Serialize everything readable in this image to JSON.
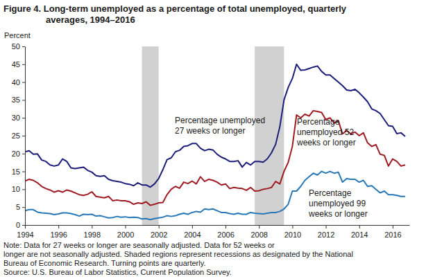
{
  "chart_data": {
    "type": "line",
    "title": [
      "Figure 4. Long-term unemployed as a percentage of total unemployed, quarterly",
      "averages, 1994–2016"
    ],
    "y_label": "Percent",
    "x": [
      1994,
      1994.25,
      1994.5,
      1994.75,
      1995,
      1995.25,
      1995.5,
      1995.75,
      1996,
      1996.25,
      1996.5,
      1996.75,
      1997,
      1997.25,
      1997.5,
      1997.75,
      1998,
      1998.25,
      1998.5,
      1998.75,
      1999,
      1999.25,
      1999.5,
      1999.75,
      2000,
      2000.25,
      2000.5,
      2000.75,
      2001,
      2001.25,
      2001.5,
      2001.75,
      2002,
      2002.25,
      2002.5,
      2002.75,
      2003,
      2003.25,
      2003.5,
      2003.75,
      2004,
      2004.25,
      2004.5,
      2004.75,
      2005,
      2005.25,
      2005.5,
      2005.75,
      2006,
      2006.25,
      2006.5,
      2006.75,
      2007,
      2007.25,
      2007.5,
      2007.75,
      2008,
      2008.25,
      2008.5,
      2008.75,
      2009,
      2009.25,
      2009.5,
      2009.75,
      2010,
      2010.25,
      2010.5,
      2010.75,
      2011,
      2011.25,
      2011.5,
      2011.75,
      2012,
      2012.25,
      2012.5,
      2012.75,
      2013,
      2013.25,
      2013.5,
      2013.75,
      2014,
      2014.25,
      2014.5,
      2014.75,
      2015,
      2015.25,
      2015.5,
      2015.75,
      2016,
      2016.25,
      2016.5,
      2016.75
    ],
    "xlim": [
      1994,
      2017
    ],
    "xticks": [
      1994,
      1996,
      1998,
      2000,
      2002,
      2004,
      2006,
      2008,
      2010,
      2012,
      2014,
      2016
    ],
    "ylim": [
      0,
      50
    ],
    "yticks": [
      0,
      5,
      10,
      15,
      20,
      25,
      30,
      35,
      40,
      45,
      50
    ],
    "series": [
      {
        "name": [
          "Percentage unemployed",
          "27 weeks or longer"
        ],
        "color": "#1c1c7a",
        "values": [
          20.5,
          20.8,
          19.8,
          19.9,
          18.2,
          17.8,
          16.8,
          16.5,
          16.8,
          18.5,
          17.8,
          16.0,
          15.8,
          16.0,
          16.2,
          15.3,
          14.8,
          13.8,
          13.6,
          13.8,
          12.8,
          12.4,
          12.2,
          12.0,
          11.6,
          11.4,
          11.0,
          11.8,
          11.2,
          11.2,
          10.6,
          11.5,
          13.0,
          15.5,
          18.3,
          18.8,
          20.5,
          20.9,
          22.0,
          22.2,
          22.8,
          22.8,
          21.5,
          20.8,
          21.2,
          21.0,
          19.8,
          19.0,
          18.5,
          17.8,
          17.8,
          18.0,
          16.2,
          17.5,
          16.8,
          17.8,
          17.8,
          17.6,
          18.5,
          20.2,
          22.6,
          27.5,
          35.0,
          38.5,
          41.0,
          45.0,
          43.3,
          43.4,
          43.8,
          44.2,
          44.5,
          43.0,
          42.0,
          42.0,
          41.0,
          40.0,
          39.0,
          37.8,
          37.6,
          38.0,
          37.0,
          35.8,
          34.5,
          32.5,
          32.0,
          31.2,
          29.5,
          27.8,
          27.6,
          25.6,
          25.8,
          24.8
        ]
      },
      {
        "name": [
          "Percentage",
          "unemployed 52",
          "weeks or longer"
        ],
        "color": "#9e1b22",
        "values": [
          12.3,
          12.8,
          12.5,
          11.8,
          10.8,
          10.2,
          9.8,
          9.2,
          9.6,
          9.2,
          9.8,
          9.5,
          9.0,
          8.5,
          8.3,
          8.6,
          9.3,
          8.0,
          7.8,
          7.6,
          8.0,
          6.8,
          7.0,
          6.8,
          6.8,
          6.5,
          5.8,
          6.2,
          6.0,
          6.5,
          5.5,
          5.8,
          6.2,
          6.3,
          8.5,
          10.0,
          10.8,
          10.3,
          12.0,
          11.6,
          12.3,
          11.5,
          13.5,
          12.2,
          12.8,
          12.5,
          12.0,
          11.2,
          11.5,
          10.2,
          10.5,
          10.3,
          10.2,
          9.7,
          10.5,
          9.5,
          9.6,
          10.0,
          10.2,
          10.5,
          12.2,
          11.5,
          15.0,
          17.5,
          22.0,
          30.8,
          30.0,
          31.0,
          30.5,
          32.0,
          31.8,
          31.5,
          29.5,
          30.0,
          28.5,
          29.2,
          25.5,
          26.5,
          25.5,
          26.0,
          25.0,
          25.8,
          23.0,
          22.0,
          22.5,
          19.8,
          19.5,
          16.5,
          18.5,
          17.8,
          16.5,
          16.8
        ]
      },
      {
        "name": [
          "Percentage",
          "unemployed 99",
          "weeks or longer"
        ],
        "color": "#2878b8",
        "values": [
          4.0,
          4.3,
          4.3,
          3.6,
          3.4,
          3.3,
          3.2,
          2.9,
          3.1,
          3.4,
          3.4,
          3.2,
          2.9,
          2.5,
          3.0,
          2.9,
          3.0,
          2.5,
          2.6,
          2.3,
          2.0,
          2.1,
          2.4,
          2.2,
          2.3,
          2.1,
          2.2,
          2.1,
          1.7,
          1.8,
          1.5,
          1.8,
          2.0,
          2.2,
          2.6,
          2.4,
          2.6,
          3.0,
          3.3,
          3.0,
          3.5,
          3.8,
          3.6,
          4.5,
          4.3,
          4.5,
          4.0,
          3.5,
          3.5,
          3.2,
          3.0,
          3.3,
          3.0,
          3.0,
          3.5,
          3.3,
          3.2,
          3.1,
          3.3,
          3.5,
          3.5,
          3.8,
          4.5,
          5.8,
          9.5,
          9.5,
          10.8,
          12.5,
          13.5,
          14.5,
          14.0,
          15.0,
          14.5,
          15.0,
          14.5,
          14.8,
          12.0,
          13.0,
          12.8,
          12.8,
          12.0,
          12.5,
          10.8,
          11.0,
          10.0,
          9.0,
          9.5,
          8.5,
          8.5,
          8.3,
          8.0,
          8.0
        ]
      }
    ],
    "recessions": [
      [
        2001,
        2002
      ],
      [
        2007.75,
        2009.5
      ]
    ],
    "note": [
      "Note: Data for 27 weeks or longer are seasonally adjusted. Data for 52 weeks or",
      "longer are not seasonally adjusted. Shaded regions represent recessions as designated by the National",
      "Bureau of Economic Research. Turning points are quarterly."
    ],
    "source": "Source: U.S. Bureau of Labor Statistics, Current Population Survey."
  }
}
